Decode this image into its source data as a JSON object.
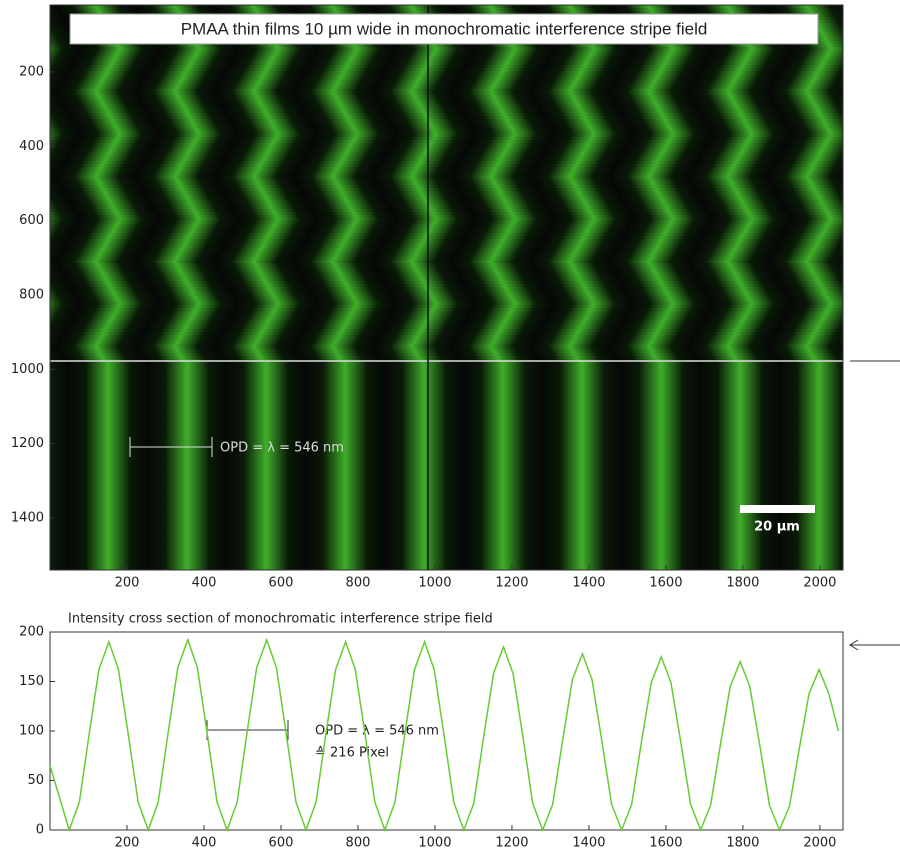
{
  "chart_data": [
    {
      "type": "image",
      "title": "PMAA thin films 10 µm wide in monochromatic interference stripe field",
      "xlim": [
        0,
        2060
      ],
      "ylim": [
        20,
        1540
      ],
      "yinvert": true,
      "xticks": [
        200,
        400,
        600,
        800,
        1000,
        1200,
        1400,
        1600,
        1800,
        2000
      ],
      "yticks": [
        200,
        400,
        600,
        800,
        1000,
        1200,
        1400
      ],
      "annotation": "OPD = λ = 546 nm",
      "scale_bar_label": "20 µm"
    },
    {
      "type": "line",
      "title": "Intensity cross section of monochromatic interference stripe field",
      "color": "#66cc33",
      "xlim": [
        0,
        2060
      ],
      "ylim": [
        0,
        200
      ],
      "xticks": [
        200,
        400,
        600,
        800,
        1000,
        1200,
        1400,
        1600,
        1800,
        2000
      ],
      "yticks": [
        0,
        50,
        100,
        150,
        200
      ],
      "annotation": [
        "OPD = λ = 546 nm",
        "≙ 216 Pixel"
      ],
      "x": [
        0,
        50,
        76,
        101,
        127,
        153,
        178,
        204,
        229,
        255,
        281,
        306,
        332,
        358,
        383,
        409,
        434,
        460,
        486,
        511,
        537,
        563,
        588,
        614,
        639,
        665,
        691,
        716,
        742,
        768,
        793,
        819,
        844,
        870,
        896,
        921,
        947,
        973,
        998,
        1024,
        1049,
        1075,
        1101,
        1126,
        1152,
        1178,
        1203,
        1229,
        1254,
        1280,
        1306,
        1331,
        1357,
        1383,
        1408,
        1434,
        1459,
        1485,
        1511,
        1536,
        1562,
        1588,
        1613,
        1639,
        1664,
        1690,
        1716,
        1741,
        1767,
        1793,
        1818,
        1844,
        1869,
        1895,
        1921,
        1946,
        1972,
        1998,
        2023,
        2048
      ],
      "values": [
        65,
        0,
        28,
        95,
        162,
        190,
        162,
        95,
        28,
        0,
        28,
        96,
        164,
        192,
        164,
        96,
        28,
        0,
        28,
        96,
        164,
        192,
        164,
        96,
        28,
        0,
        28,
        95,
        162,
        190,
        162,
        95,
        28,
        0,
        28,
        95,
        162,
        190,
        162,
        95,
        28,
        0,
        27,
        93,
        158,
        185,
        158,
        93,
        27,
        0,
        26,
        89,
        152,
        178,
        152,
        89,
        26,
        0,
        26,
        88,
        149,
        175,
        149,
        88,
        26,
        0,
        25,
        85,
        145,
        170,
        145,
        85,
        25,
        0,
        24,
        81,
        138,
        162,
        138,
        100
      ]
    }
  ]
}
